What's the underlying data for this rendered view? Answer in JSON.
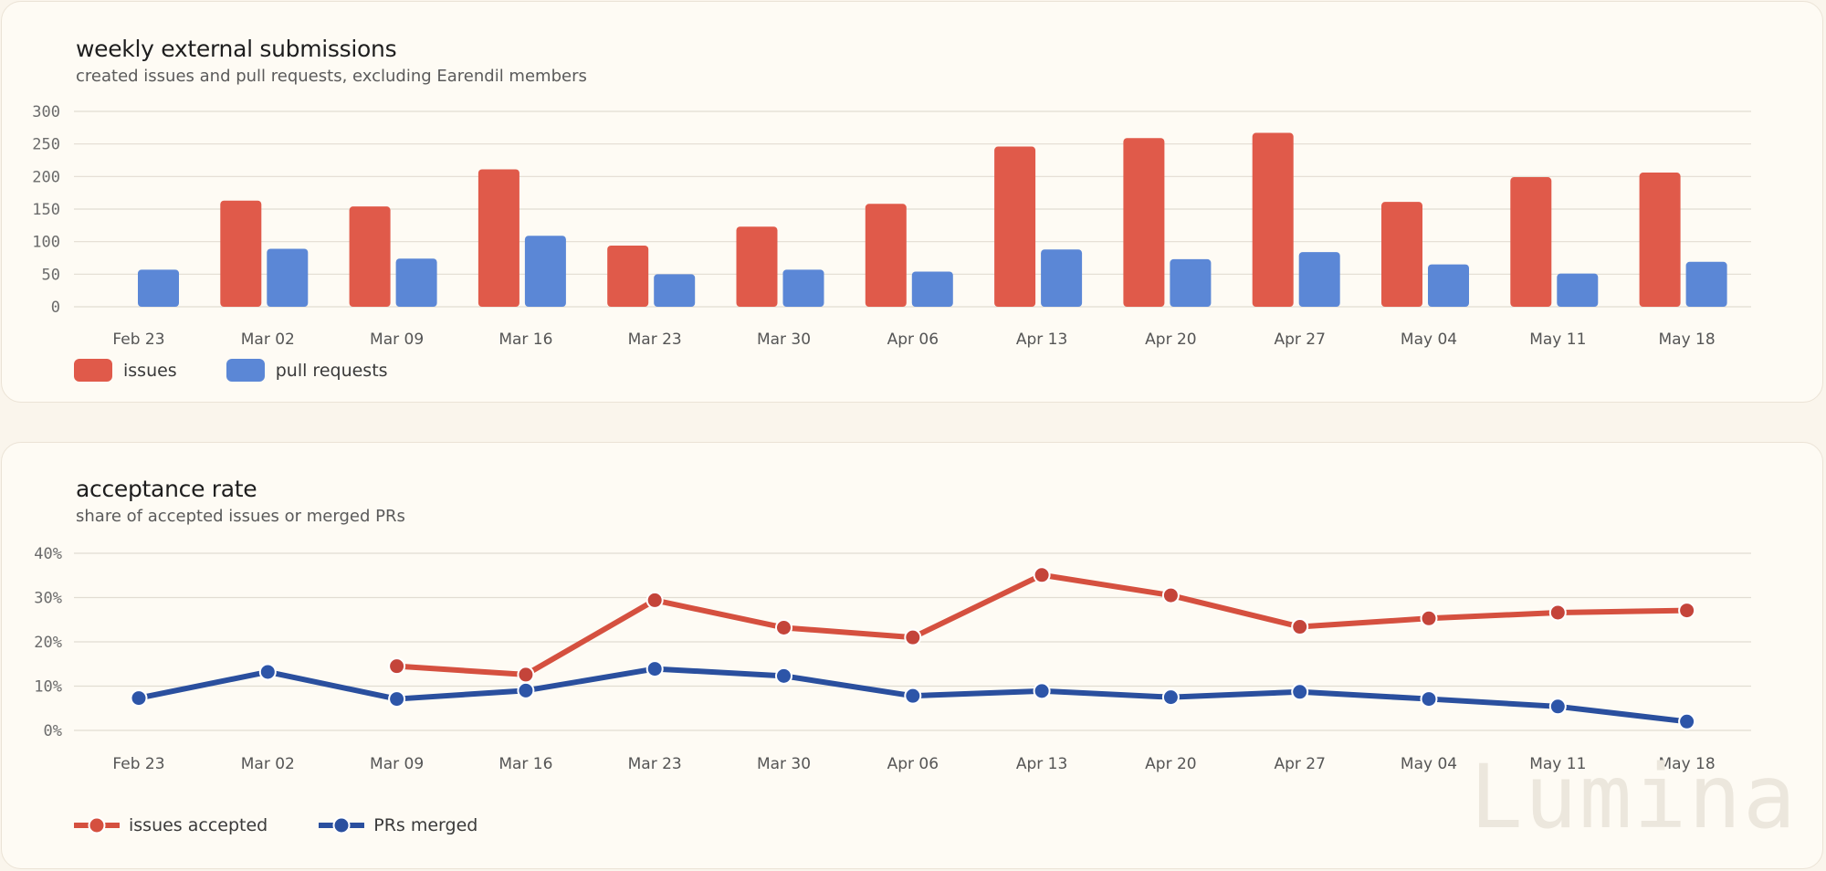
{
  "colors": {
    "issues": "#e05a4a",
    "pull_requests": "#5b87d6",
    "issues_accepted": "#d5503f",
    "prs_merged": "#2a4f9e",
    "grid": "#e2ddd2",
    "tick_text": "#6b6b6b"
  },
  "chart_data": [
    {
      "type": "bar",
      "title": "weekly external submissions",
      "subtitle": "created issues and pull requests, excluding Earendil members",
      "categories": [
        "Feb 23",
        "Mar 02",
        "Mar 09",
        "Mar 16",
        "Mar 23",
        "Mar 30",
        "Apr 06",
        "Apr 13",
        "Apr 20",
        "Apr 27",
        "May 04",
        "May 11",
        "May 18"
      ],
      "series": [
        {
          "name": "issues",
          "values": [
            0,
            163,
            154,
            211,
            94,
            123,
            158,
            246,
            259,
            267,
            161,
            199,
            206
          ]
        },
        {
          "name": "pull requests",
          "values": [
            57,
            89,
            74,
            109,
            50,
            57,
            54,
            88,
            73,
            84,
            65,
            51,
            69
          ]
        }
      ],
      "ylim": [
        0,
        300
      ],
      "yticks": [
        "300",
        "250",
        "200",
        "150",
        "100",
        "50",
        "0"
      ],
      "grid": true,
      "legend": "bottom-left"
    },
    {
      "type": "line",
      "title": "acceptance rate",
      "subtitle": "share of accepted issues or merged PRs",
      "categories": [
        "Feb 23",
        "Mar 02",
        "Mar 09",
        "Mar 16",
        "Mar 23",
        "Mar 30",
        "Apr 06",
        "Apr 13",
        "Apr 20",
        "Apr 27",
        "May 04",
        "May 11",
        "May 18"
      ],
      "series": [
        {
          "name": "issues accepted",
          "values": [
            null,
            null,
            14.5,
            12.6,
            29.4,
            23.2,
            21.0,
            35.1,
            30.5,
            23.4,
            25.3,
            26.6,
            27.1
          ]
        },
        {
          "name": "PRs merged",
          "values": [
            7.3,
            13.2,
            7.1,
            9.0,
            13.9,
            12.3,
            7.8,
            8.9,
            7.5,
            8.7,
            7.1,
            5.4,
            2.0
          ]
        }
      ],
      "ylim": [
        0,
        40
      ],
      "yticks": [
        "40%",
        "30%",
        "20%",
        "10%",
        "0%"
      ],
      "grid": true,
      "legend": "bottom-left"
    }
  ],
  "watermark": "Lumina"
}
